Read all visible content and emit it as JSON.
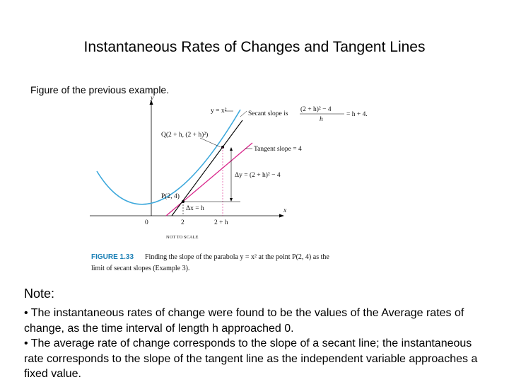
{
  "slide": {
    "title": "Instantaneous Rates of Changes and Tangent Lines",
    "subtitle": "Figure of the previous example."
  },
  "figure": {
    "labels": {
      "y_axis": "y",
      "x_axis": "x",
      "curve": "y = x²",
      "secant_slope_prefix": "Secant slope is",
      "secant_numerator": "(2 + h)² − 4",
      "secant_denominator": "h",
      "secant_result": "= h + 4.",
      "point_q": "Q(2 + h, (2 + h)²)",
      "tangent_slope": "Tangent slope = 4",
      "delta_y": "Δy = (2 + h)² − 4",
      "point_p": "P(2, 4)",
      "delta_x": "Δx = h",
      "tick_0": "0",
      "tick_2": "2",
      "tick_2h": "2 + h",
      "not_to_scale": "NOT TO SCALE"
    },
    "caption": {
      "label": "FIGURE 1.33",
      "line1": "Finding the slope of the parabola  y = x² at the point P(2, 4) as the",
      "line2": "limit of secant slopes (Example 3)."
    },
    "colors": {
      "parabola": "#3fa9dc",
      "tangent": "#d9268b",
      "secant": "#000000"
    }
  },
  "note": {
    "heading": "Note:",
    "bullets": [
      "• The instantaneous rates of change were found to be the values of the Average rates of change, as the time interval of length h approached 0.",
      "• The average rate of change corresponds to the slope of a secant line; the instantaneous rate corresponds to the slope of the tangent line as the independent variable approaches a fixed value."
    ]
  }
}
